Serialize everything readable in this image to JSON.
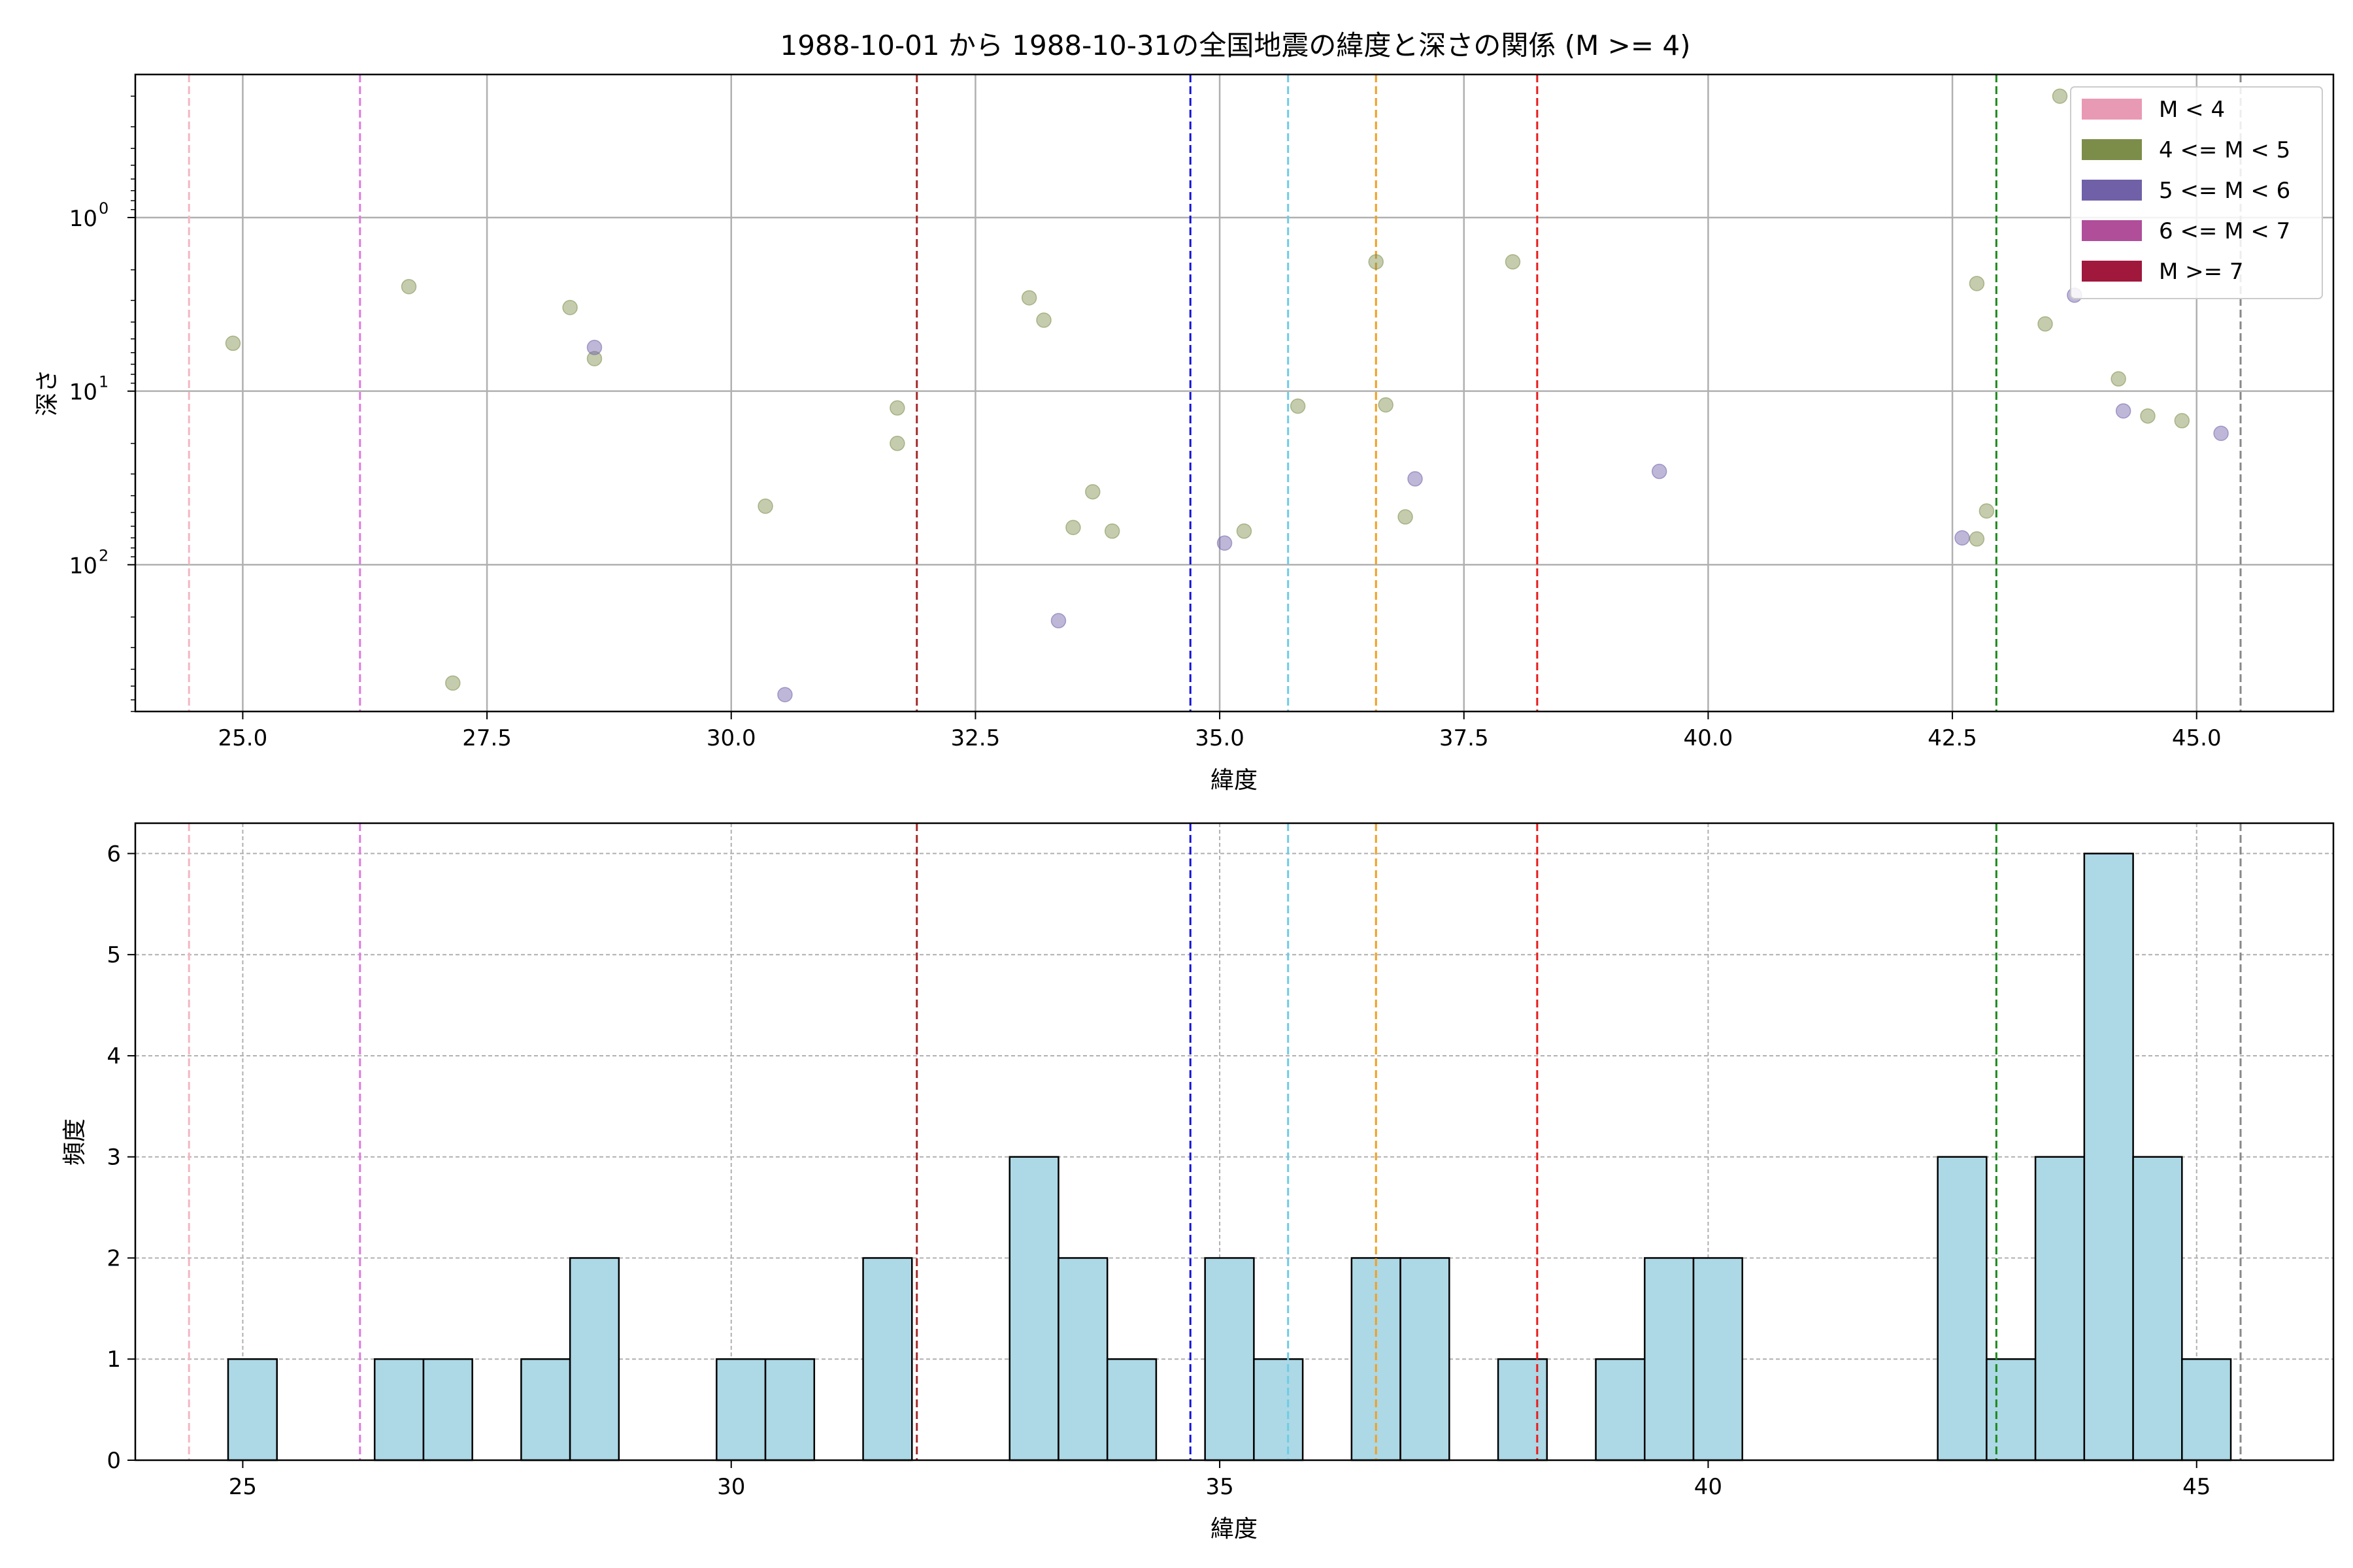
{
  "chart_data": [
    {
      "type": "scatter",
      "title": "1988-10-01 から 1988-10-31の全国地震の緯度と深さの関係 (M >= 4)",
      "xlabel": "緯度",
      "ylabel": "深さ",
      "xlim": [
        23.9,
        46.4
      ],
      "ylim": [
        700,
        0.15
      ],
      "yscale": "log-inverted",
      "x_ticks": [
        25.0,
        27.5,
        30.0,
        32.5,
        35.0,
        37.5,
        40.0,
        42.5,
        45.0
      ],
      "x_tick_labels": [
        "25.0",
        "27.5",
        "30.0",
        "32.5",
        "35.0",
        "37.5",
        "40.0",
        "42.5",
        "45.0"
      ],
      "y_ticks": [
        1,
        10,
        100
      ],
      "y_tick_labels": [
        "10",
        "10",
        "10"
      ],
      "y_tick_exponents": [
        "0",
        "1",
        "2"
      ],
      "grid": true,
      "legend_position": "top-right",
      "legend": [
        {
          "label": "M < 4",
          "color": "#e89ab4"
        },
        {
          "label": "4 <= M < 5",
          "color": "#7c8d4a"
        },
        {
          "label": "5 <= M < 6",
          "color": "#7060a8"
        },
        {
          "label": "6 <= M < 7",
          "color": "#b04e9a"
        },
        {
          "label": "M >= 7",
          "color": "#a0183c"
        }
      ],
      "series": [
        {
          "name": "4 <= M < 5",
          "color": "#7c8d4a",
          "points": [
            [
              24.9,
              5.3
            ],
            [
              26.7,
              2.5
            ],
            [
              27.15,
              480
            ],
            [
              28.35,
              3.3
            ],
            [
              28.6,
              6.5
            ],
            [
              30.35,
              46
            ],
            [
              31.7,
              12.5
            ],
            [
              31.7,
              20
            ],
            [
              33.05,
              2.9
            ],
            [
              33.2,
              3.9
            ],
            [
              33.5,
              61
            ],
            [
              33.7,
              38
            ],
            [
              33.9,
              64
            ],
            [
              35.25,
              64
            ],
            [
              35.8,
              12.2
            ],
            [
              36.6,
              1.8
            ],
            [
              36.7,
              12
            ],
            [
              36.9,
              53
            ],
            [
              38.0,
              1.8
            ],
            [
              42.75,
              2.4
            ],
            [
              42.75,
              71
            ],
            [
              42.85,
              49
            ],
            [
              43.45,
              4.1
            ],
            [
              43.6,
              0.2
            ],
            [
              44.2,
              8.5
            ],
            [
              44.5,
              13.9
            ],
            [
              44.85,
              14.8
            ]
          ]
        },
        {
          "name": "5 <= M < 6",
          "color": "#7060a8",
          "points": [
            [
              28.6,
              5.6
            ],
            [
              30.55,
              560
            ],
            [
              33.35,
              210
            ],
            [
              35.05,
              75
            ],
            [
              37.0,
              32
            ],
            [
              39.5,
              29
            ],
            [
              42.6,
              70
            ],
            [
              43.75,
              2.8
            ],
            [
              44.25,
              13
            ],
            [
              45.25,
              17.5
            ]
          ]
        }
      ],
      "reference_lines": [
        {
          "x": 24.45,
          "color": "#f4b6c2"
        },
        {
          "x": 26.2,
          "color": "#e07ae0"
        },
        {
          "x": 31.9,
          "color": "#a52a2a"
        },
        {
          "x": 34.7,
          "color": "#1414d8"
        },
        {
          "x": 35.7,
          "color": "#6ecce6"
        },
        {
          "x": 36.6,
          "color": "#f0a020"
        },
        {
          "x": 38.25,
          "color": "#e81c1c"
        },
        {
          "x": 42.95,
          "color": "#1a8a1a"
        },
        {
          "x": 45.45,
          "color": "#888888"
        }
      ]
    },
    {
      "type": "bar",
      "title": "",
      "xlabel": "緯度",
      "ylabel": "頻度",
      "xlim": [
        23.9,
        46.4
      ],
      "ylim": [
        0,
        6.3
      ],
      "x_ticks": [
        25,
        30,
        35,
        40,
        45
      ],
      "x_tick_labels": [
        "25",
        "30",
        "35",
        "40",
        "45"
      ],
      "y_ticks": [
        0,
        1,
        2,
        3,
        4,
        5,
        6
      ],
      "y_tick_labels": [
        "0",
        "1",
        "2",
        "3",
        "4",
        "5",
        "6"
      ],
      "grid": true,
      "bar_color": "#add8e6",
      "bins": [
        {
          "start": 24.85,
          "end": 25.35,
          "count": 1
        },
        {
          "start": 26.35,
          "end": 26.85,
          "count": 1
        },
        {
          "start": 26.85,
          "end": 27.35,
          "count": 1
        },
        {
          "start": 27.85,
          "end": 28.35,
          "count": 1
        },
        {
          "start": 28.35,
          "end": 28.85,
          "count": 2
        },
        {
          "start": 29.85,
          "end": 30.35,
          "count": 1
        },
        {
          "start": 30.35,
          "end": 30.85,
          "count": 1
        },
        {
          "start": 31.35,
          "end": 31.85,
          "count": 2
        },
        {
          "start": 32.85,
          "end": 33.35,
          "count": 3
        },
        {
          "start": 33.35,
          "end": 33.85,
          "count": 2
        },
        {
          "start": 33.85,
          "end": 34.35,
          "count": 1
        },
        {
          "start": 34.85,
          "end": 35.35,
          "count": 2
        },
        {
          "start": 35.35,
          "end": 35.85,
          "count": 1
        },
        {
          "start": 36.35,
          "end": 36.85,
          "count": 2
        },
        {
          "start": 36.85,
          "end": 37.35,
          "count": 2
        },
        {
          "start": 37.85,
          "end": 38.35,
          "count": 1
        },
        {
          "start": 38.85,
          "end": 39.35,
          "count": 1
        },
        {
          "start": 39.35,
          "end": 39.85,
          "count": 2
        },
        {
          "start": 39.85,
          "end": 40.35,
          "count": 2
        },
        {
          "start": 42.35,
          "end": 42.85,
          "count": 3
        },
        {
          "start": 42.85,
          "end": 43.35,
          "count": 1
        },
        {
          "start": 43.35,
          "end": 43.85,
          "count": 3
        },
        {
          "start": 43.85,
          "end": 44.35,
          "count": 6
        },
        {
          "start": 44.35,
          "end": 44.85,
          "count": 3
        },
        {
          "start": 44.85,
          "end": 45.35,
          "count": 1
        }
      ],
      "reference_lines": [
        {
          "x": 24.45,
          "color": "#f4b6c2"
        },
        {
          "x": 26.2,
          "color": "#e07ae0"
        },
        {
          "x": 31.9,
          "color": "#a52a2a"
        },
        {
          "x": 34.7,
          "color": "#1414d8"
        },
        {
          "x": 35.7,
          "color": "#6ecce6"
        },
        {
          "x": 36.6,
          "color": "#f0a020"
        },
        {
          "x": 38.25,
          "color": "#e81c1c"
        },
        {
          "x": 42.95,
          "color": "#1a8a1a"
        },
        {
          "x": 45.45,
          "color": "#888888"
        }
      ]
    }
  ]
}
